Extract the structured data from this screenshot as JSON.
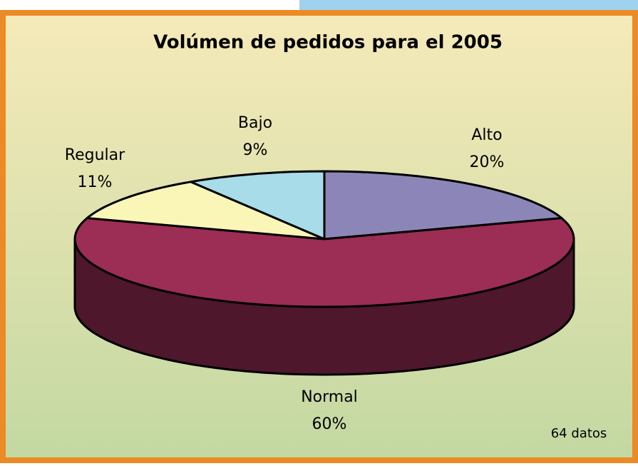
{
  "chart_data": {
    "type": "pie",
    "title": "Volúmen de pedidos para el 2005",
    "categories": [
      "Alto",
      "Normal",
      "Regular",
      "Bajo"
    ],
    "values": [
      20,
      60,
      11,
      9
    ],
    "value_labels": [
      "20%",
      "60%",
      "11%",
      "9%"
    ],
    "colors": [
      "#8c86b8",
      "#9c2d55",
      "#faf6b8",
      "#a8dce8"
    ],
    "annotation": "64 datos"
  }
}
